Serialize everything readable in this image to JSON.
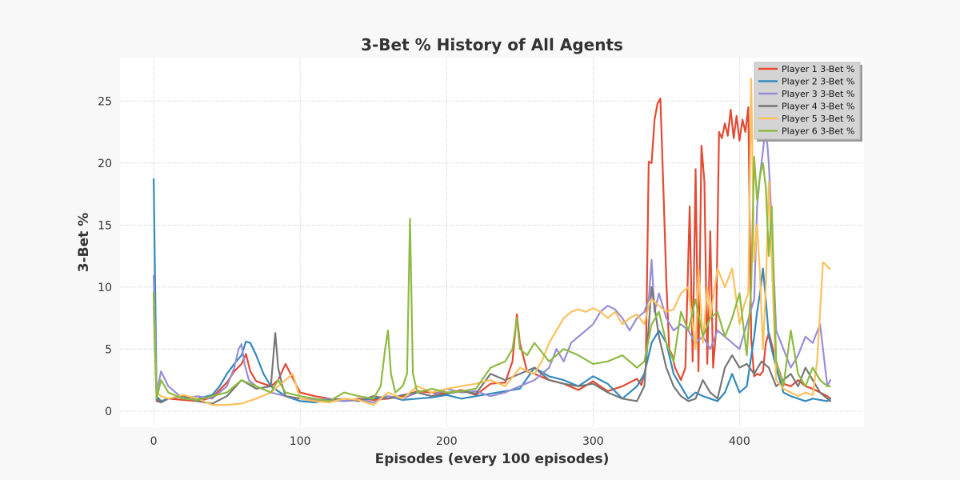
{
  "chart_data": {
    "type": "line",
    "title": "3-Bet % History of All Agents",
    "xlabel": "Episodes (every 100 episodes)",
    "ylabel": "3-Bet %",
    "xlim": [
      -23,
      485
    ],
    "ylim": [
      -1.3,
      28.5
    ],
    "xticks": [
      0,
      100,
      200,
      300,
      400
    ],
    "yticks": [
      0,
      5,
      10,
      15,
      20,
      25
    ],
    "grid": true,
    "legend_position": "top-right",
    "series": [
      {
        "name": "Player 1 3-Bet %",
        "color": "#e24a33",
        "x": [
          0,
          2,
          5,
          10,
          20,
          30,
          40,
          50,
          55,
          60,
          63,
          66,
          70,
          80,
          85,
          90,
          100,
          110,
          120,
          130,
          140,
          150,
          160,
          170,
          180,
          190,
          200,
          210,
          220,
          230,
          240,
          245,
          248,
          250,
          255,
          260,
          270,
          280,
          290,
          300,
          310,
          320,
          330,
          333,
          336,
          338,
          340,
          342,
          344,
          346,
          348,
          350,
          352,
          354,
          356,
          358,
          360,
          363,
          366,
          368,
          370,
          372,
          374,
          376,
          378,
          380,
          382,
          384,
          386,
          388,
          390,
          392,
          394,
          396,
          398,
          400,
          402,
          404,
          406,
          408,
          410,
          412,
          414,
          416,
          418,
          420,
          425,
          430,
          435,
          440,
          445,
          450,
          455,
          460,
          462
        ],
        "y": [
          9.5,
          1.0,
          0.7,
          1.0,
          0.9,
          0.8,
          1.1,
          2.3,
          3.2,
          3.8,
          4.6,
          3.2,
          2.4,
          2.0,
          2.5,
          3.8,
          1.5,
          1.2,
          1.0,
          0.8,
          1.0,
          0.9,
          1.0,
          1.2,
          1.6,
          1.5,
          1.4,
          1.7,
          1.3,
          2.2,
          2.3,
          4.0,
          7.8,
          5.5,
          3.2,
          3.0,
          2.5,
          2.2,
          1.7,
          2.4,
          1.6,
          2.0,
          2.6,
          2.1,
          3.5,
          20.1,
          20.0,
          23.5,
          24.8,
          25.2,
          18.0,
          10.5,
          5.0,
          4.5,
          3.5,
          3.0,
          2.5,
          3.5,
          16.5,
          4.0,
          19.5,
          3.2,
          21.4,
          18.5,
          3.8,
          14.5,
          3.5,
          6.5,
          22.5,
          22.0,
          23.2,
          22.2,
          24.3,
          22.0,
          23.8,
          21.8,
          23.5,
          22.5,
          24.5,
          5.8,
          2.8,
          3.0,
          2.9,
          3.2,
          5.5,
          6.3,
          4.0,
          2.2,
          2.0,
          2.5,
          2.0,
          1.8,
          1.5,
          1.2,
          1.0
        ]
      },
      {
        "name": "Player 2 3-Bet %",
        "color": "#348abd",
        "x": [
          0,
          2,
          5,
          10,
          20,
          30,
          40,
          45,
          50,
          55,
          60,
          63,
          66,
          70,
          75,
          80,
          90,
          100,
          110,
          120,
          130,
          140,
          150,
          160,
          170,
          180,
          190,
          200,
          210,
          220,
          230,
          240,
          250,
          260,
          270,
          280,
          290,
          300,
          310,
          320,
          330,
          335,
          338,
          340,
          345,
          350,
          355,
          360,
          365,
          370,
          375,
          380,
          385,
          390,
          395,
          400,
          405,
          410,
          412,
          414,
          416,
          418,
          420,
          425,
          430,
          435,
          440,
          445,
          450,
          455,
          460,
          462
        ],
        "y": [
          18.7,
          1.2,
          0.8,
          1.0,
          1.2,
          1.0,
          1.3,
          2.0,
          3.0,
          3.8,
          4.5,
          5.6,
          5.5,
          4.5,
          3.0,
          2.0,
          1.2,
          0.8,
          0.7,
          0.9,
          0.8,
          0.9,
          1.0,
          1.2,
          0.9,
          1.0,
          1.1,
          1.3,
          1.0,
          1.2,
          1.4,
          1.6,
          1.8,
          3.5,
          2.8,
          2.5,
          2.0,
          2.8,
          2.2,
          1.0,
          2.0,
          3.0,
          4.5,
          5.5,
          6.5,
          5.5,
          3.0,
          2.0,
          1.0,
          1.5,
          1.2,
          1.0,
          0.8,
          1.5,
          3.0,
          1.5,
          2.0,
          6.0,
          8.0,
          9.5,
          11.5,
          9.0,
          6.0,
          3.5,
          1.5,
          1.2,
          1.0,
          0.8,
          1.0,
          0.9,
          0.8,
          1.0
        ]
      },
      {
        "name": "Player 3 3-Bet %",
        "color": "#988ed5",
        "x": [
          0,
          2,
          5,
          10,
          20,
          30,
          40,
          50,
          55,
          58,
          60,
          62,
          65,
          70,
          80,
          90,
          100,
          110,
          120,
          130,
          140,
          150,
          160,
          170,
          180,
          190,
          200,
          210,
          220,
          230,
          240,
          250,
          260,
          270,
          275,
          280,
          285,
          290,
          295,
          300,
          305,
          310,
          315,
          320,
          325,
          330,
          335,
          338,
          340,
          342,
          345,
          350,
          355,
          360,
          365,
          370,
          375,
          380,
          385,
          390,
          395,
          400,
          405,
          410,
          412,
          414,
          416,
          418,
          420,
          422,
          425,
          430,
          435,
          440,
          445,
          450,
          455,
          460,
          462
        ],
        "y": [
          10.9,
          1.5,
          3.2,
          2.0,
          1.0,
          1.2,
          1.0,
          2.0,
          3.5,
          5.0,
          5.4,
          3.8,
          2.5,
          2.0,
          1.5,
          1.2,
          1.0,
          0.9,
          1.0,
          0.8,
          0.9,
          0.7,
          1.2,
          1.0,
          1.5,
          1.2,
          1.8,
          1.5,
          1.6,
          1.2,
          1.5,
          2.0,
          2.5,
          3.5,
          5.0,
          4.0,
          5.5,
          6.0,
          6.5,
          7.0,
          8.0,
          8.5,
          8.2,
          7.5,
          6.5,
          7.5,
          8.0,
          9.0,
          12.2,
          8.0,
          9.5,
          7.5,
          6.5,
          7.0,
          6.5,
          5.5,
          6.0,
          5.0,
          6.5,
          6.0,
          5.5,
          5.0,
          7.0,
          9.0,
          16.5,
          19.0,
          21.0,
          23.0,
          20.0,
          15.0,
          6.5,
          5.0,
          3.5,
          4.5,
          6.0,
          5.5,
          7.0,
          2.0,
          2.5
        ]
      },
      {
        "name": "Player 4 3-Bet %",
        "color": "#777777",
        "x": [
          0,
          2,
          5,
          10,
          20,
          30,
          40,
          50,
          60,
          70,
          80,
          83,
          85,
          88,
          90,
          100,
          110,
          120,
          130,
          140,
          150,
          160,
          170,
          180,
          190,
          200,
          210,
          220,
          230,
          240,
          250,
          260,
          270,
          280,
          290,
          300,
          310,
          320,
          330,
          335,
          340,
          345,
          350,
          355,
          360,
          365,
          370,
          375,
          380,
          385,
          390,
          395,
          400,
          405,
          410,
          415,
          420,
          425,
          430,
          435,
          440,
          445,
          450,
          455,
          460,
          462
        ],
        "y": [
          8.5,
          0.8,
          0.7,
          1.0,
          1.2,
          0.8,
          0.6,
          1.2,
          2.5,
          1.8,
          2.0,
          6.3,
          3.5,
          2.0,
          1.2,
          1.0,
          0.8,
          0.9,
          1.0,
          0.8,
          1.2,
          1.0,
          1.3,
          1.5,
          1.2,
          1.4,
          1.6,
          1.4,
          3.0,
          2.5,
          3.0,
          3.5,
          2.5,
          2.2,
          2.0,
          2.2,
          1.5,
          1.0,
          0.8,
          2.0,
          10.0,
          6.0,
          3.5,
          2.0,
          1.2,
          0.8,
          1.0,
          2.5,
          1.5,
          1.0,
          3.5,
          4.5,
          3.5,
          3.8,
          3.0,
          4.0,
          3.5,
          2.0,
          2.5,
          3.0,
          2.0,
          3.5,
          2.5,
          1.5,
          1.0,
          0.8
        ]
      },
      {
        "name": "Player 5 3-Bet %",
        "color": "#fbc15e",
        "x": [
          0,
          2,
          5,
          10,
          20,
          30,
          40,
          50,
          60,
          70,
          80,
          90,
          95,
          100,
          110,
          120,
          130,
          140,
          150,
          160,
          170,
          180,
          190,
          200,
          210,
          220,
          230,
          240,
          250,
          260,
          265,
          270,
          275,
          280,
          285,
          290,
          295,
          300,
          305,
          310,
          315,
          320,
          325,
          330,
          335,
          338,
          340,
          345,
          350,
          355,
          360,
          365,
          370,
          372,
          375,
          378,
          380,
          385,
          390,
          395,
          400,
          403,
          406,
          408,
          410,
          412,
          414,
          416,
          418,
          420,
          425,
          430,
          435,
          440,
          445,
          450,
          453,
          455,
          457,
          459,
          461,
          462
        ],
        "y": [
          9.0,
          1.5,
          1.2,
          1.0,
          1.3,
          1.0,
          0.5,
          0.5,
          0.6,
          1.0,
          1.5,
          2.5,
          3.0,
          1.0,
          0.8,
          0.7,
          1.0,
          0.9,
          0.5,
          1.5,
          1.0,
          2.0,
          1.5,
          1.8,
          2.0,
          2.2,
          2.5,
          2.0,
          3.5,
          3.0,
          4.0,
          5.5,
          6.5,
          7.5,
          8.0,
          8.2,
          8.0,
          8.3,
          8.0,
          7.5,
          8.0,
          7.0,
          7.5,
          7.8,
          7.0,
          8.5,
          9.0,
          8.5,
          8.0,
          8.2,
          9.5,
          10.0,
          5.0,
          11.5,
          5.5,
          10.0,
          7.5,
          11.5,
          10.0,
          11.5,
          7.0,
          8.5,
          9.5,
          26.8,
          12.0,
          15.0,
          11.0,
          5.0,
          10.0,
          18.5,
          2.5,
          1.8,
          1.5,
          1.2,
          1.5,
          1.3,
          4.0,
          8.0,
          12.0,
          11.8,
          11.5,
          11.5
        ]
      },
      {
        "name": "Player 6 3-Bet %",
        "color": "#8eba42",
        "x": [
          0,
          2,
          5,
          10,
          20,
          30,
          40,
          50,
          60,
          70,
          80,
          85,
          90,
          100,
          110,
          120,
          130,
          140,
          150,
          155,
          158,
          160,
          162,
          165,
          170,
          173,
          175,
          177,
          180,
          190,
          200,
          210,
          220,
          230,
          240,
          245,
          248,
          250,
          255,
          260,
          270,
          280,
          290,
          300,
          310,
          320,
          330,
          335,
          340,
          345,
          350,
          355,
          360,
          365,
          370,
          375,
          380,
          385,
          390,
          395,
          400,
          405,
          408,
          410,
          412,
          414,
          416,
          418,
          420,
          422,
          425,
          430,
          435,
          440,
          445,
          450,
          455,
          460,
          462
        ],
        "y": [
          9.6,
          1.0,
          2.5,
          1.5,
          1.0,
          0.9,
          1.2,
          1.5,
          2.5,
          2.0,
          1.5,
          2.5,
          1.5,
          1.2,
          1.0,
          0.8,
          1.5,
          1.2,
          1.0,
          2.0,
          5.0,
          6.5,
          3.0,
          1.5,
          2.0,
          3.0,
          15.5,
          3.0,
          1.5,
          1.8,
          1.5,
          1.6,
          1.8,
          3.5,
          4.0,
          5.0,
          7.5,
          5.0,
          4.5,
          5.5,
          4.0,
          5.0,
          4.5,
          3.8,
          4.0,
          4.5,
          3.5,
          4.0,
          7.0,
          8.0,
          5.5,
          4.0,
          8.0,
          6.5,
          9.0,
          6.0,
          7.5,
          8.0,
          6.0,
          7.5,
          9.5,
          4.5,
          10.0,
          20.5,
          17.0,
          19.0,
          20.0,
          18.0,
          12.5,
          16.5,
          4.0,
          2.0,
          6.5,
          3.0,
          2.0,
          3.5,
          2.5,
          2.0,
          2.0
        ]
      }
    ]
  }
}
